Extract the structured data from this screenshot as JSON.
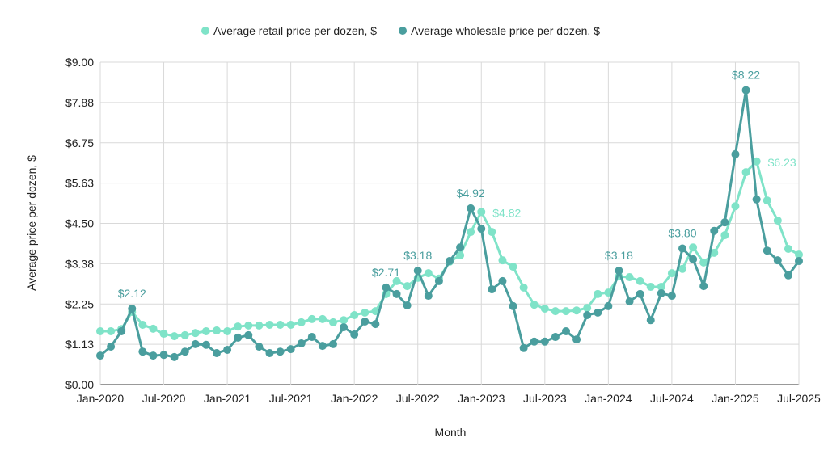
{
  "chart_data": {
    "type": "line",
    "title": "",
    "xlabel": "Month",
    "ylabel": "Average price per dozen, $",
    "ylim": [
      0,
      9
    ],
    "yticks": [
      "$0.00",
      "$1.13",
      "$2.25",
      "$3.38",
      "$4.50",
      "$5.63",
      "$6.75",
      "$7.88",
      "$9.00"
    ],
    "ytick_values": [
      0,
      1.125,
      2.25,
      3.375,
      4.5,
      5.625,
      6.75,
      7.875,
      9
    ],
    "xticks": [
      "Jan-2020",
      "Jul-2020",
      "Jan-2021",
      "Jul-2021",
      "Jan-2022",
      "Jul-2022",
      "Jan-2023",
      "Jul-2023",
      "Jan-2024",
      "Jul-2024",
      "Jan-2025",
      "Jul-2025"
    ],
    "x_start": "Jan-2020",
    "x_end": "Jul-2025",
    "grid": true,
    "legend_position": "top",
    "series": [
      {
        "name": "Average retail price per dozen, $",
        "color": "#7fe3c8",
        "values": [
          1.49,
          1.49,
          1.55,
          2.03,
          1.67,
          1.56,
          1.42,
          1.35,
          1.38,
          1.44,
          1.49,
          1.51,
          1.49,
          1.62,
          1.65,
          1.65,
          1.67,
          1.67,
          1.67,
          1.74,
          1.83,
          1.83,
          1.74,
          1.8,
          1.94,
          2.01,
          2.05,
          2.53,
          2.89,
          2.75,
          2.98,
          3.11,
          2.96,
          3.43,
          3.61,
          4.26,
          4.82,
          4.26,
          3.47,
          3.29,
          2.71,
          2.23,
          2.12,
          2.05,
          2.05,
          2.07,
          2.14,
          2.53,
          2.57,
          3.02,
          3.0,
          2.89,
          2.73,
          2.73,
          3.11,
          3.23,
          3.83,
          3.41,
          3.68,
          4.17,
          4.98,
          5.93,
          6.23,
          5.14,
          4.58,
          3.79,
          3.63
        ],
        "labels": [
          {
            "month": "Jan-2023",
            "text": "$4.82"
          },
          {
            "month": "Mar-2025",
            "text": "$6.23"
          }
        ]
      },
      {
        "name": "Average wholesale price per dozen, $",
        "color": "#4a9e9e",
        "values": [
          0.81,
          1.06,
          1.49,
          2.12,
          0.92,
          0.81,
          0.83,
          0.77,
          0.92,
          1.13,
          1.11,
          0.88,
          0.97,
          1.31,
          1.38,
          1.06,
          0.88,
          0.92,
          0.99,
          1.15,
          1.33,
          1.08,
          1.13,
          1.6,
          1.4,
          1.76,
          1.69,
          2.71,
          2.53,
          2.21,
          3.18,
          2.48,
          2.89,
          3.45,
          3.83,
          4.92,
          4.35,
          2.66,
          2.89,
          2.19,
          1.02,
          1.2,
          1.2,
          1.33,
          1.49,
          1.26,
          1.94,
          2.01,
          2.19,
          3.18,
          2.32,
          2.53,
          1.8,
          2.55,
          2.48,
          3.8,
          3.5,
          2.75,
          4.29,
          4.53,
          6.43,
          8.22,
          5.17,
          3.74,
          3.47,
          3.05,
          3.45
        ],
        "labels": [
          {
            "month": "Apr-2020",
            "text": "$2.12"
          },
          {
            "month": "Apr-2022",
            "text": "$2.71"
          },
          {
            "month": "Jul-2022",
            "text": "$3.18"
          },
          {
            "month": "Dec-2022",
            "text": "$4.92"
          },
          {
            "month": "Feb-2024",
            "text": "$3.18"
          },
          {
            "month": "Aug-2024",
            "text": "$3.80"
          },
          {
            "month": "Feb-2025",
            "text": "$8.22"
          }
        ]
      }
    ]
  }
}
